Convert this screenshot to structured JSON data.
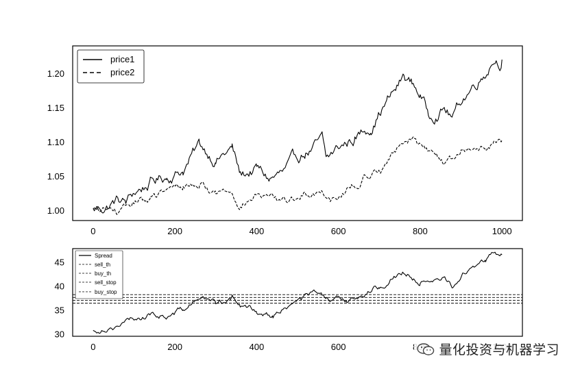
{
  "chart_data": [
    {
      "type": "line",
      "title": "",
      "xlabel": "",
      "ylabel": "",
      "xlim": [
        -50,
        1050
      ],
      "ylim": [
        0.985,
        1.24
      ],
      "xticks": [
        0,
        200,
        400,
        600,
        800,
        1000
      ],
      "yticks": [
        1.0,
        1.05,
        1.1,
        1.15,
        1.2
      ],
      "ytick_labels": [
        "1.00",
        "1.05",
        "1.10",
        "1.15",
        "1.20"
      ],
      "legend_position": "top-left",
      "grid": false,
      "series": [
        {
          "name": "price1",
          "style": "solid",
          "color": "#000000",
          "x": [
            0,
            30,
            60,
            80,
            100,
            140,
            180,
            220,
            260,
            300,
            340,
            360,
            400,
            430,
            470,
            520,
            540,
            560,
            570,
            600,
            640,
            680,
            700,
            720,
            740,
            760,
            780,
            800,
            820,
            860,
            880,
            900,
            940,
            960,
            980,
            1000
          ],
          "values": [
            1.0,
            1.005,
            1.015,
            1.01,
            1.025,
            1.04,
            1.05,
            1.06,
            1.095,
            1.075,
            1.09,
            1.05,
            1.06,
            1.045,
            1.055,
            1.085,
            1.09,
            1.1,
            1.07,
            1.09,
            1.105,
            1.125,
            1.145,
            1.16,
            1.175,
            1.195,
            1.185,
            1.17,
            1.14,
            1.15,
            1.135,
            1.16,
            1.19,
            1.205,
            1.225,
            1.22
          ]
        },
        {
          "name": "price2",
          "style": "dashed",
          "color": "#000000",
          "x": [
            0,
            40,
            70,
            100,
            140,
            180,
            220,
            260,
            300,
            340,
            360,
            400,
            440,
            470,
            520,
            560,
            580,
            620,
            660,
            700,
            740,
            760,
            780,
            800,
            840,
            860,
            900,
            940,
            960,
            980,
            1000
          ],
          "values": [
            1.0,
            1.0,
            0.997,
            1.01,
            1.017,
            1.025,
            1.035,
            1.04,
            1.025,
            1.03,
            1.01,
            1.022,
            1.015,
            1.01,
            1.025,
            1.03,
            1.02,
            1.03,
            1.045,
            1.06,
            1.085,
            1.105,
            1.108,
            1.095,
            1.08,
            1.07,
            1.08,
            1.09,
            1.095,
            1.1,
            1.102
          ]
        }
      ]
    },
    {
      "type": "line",
      "title": "",
      "xlabel": "",
      "ylabel": "",
      "xlim": [
        -50,
        1050
      ],
      "ylim": [
        29.5,
        47.8
      ],
      "xticks": [
        0,
        200,
        400,
        600,
        800,
        1000
      ],
      "yticks": [
        30,
        35,
        40,
        45
      ],
      "legend_position": "top-left",
      "grid": false,
      "series": [
        {
          "name": "Spread",
          "style": "solid",
          "color": "#000000",
          "x": [
            0,
            30,
            70,
            100,
            140,
            180,
            220,
            260,
            300,
            340,
            360,
            400,
            440,
            470,
            520,
            540,
            560,
            580,
            620,
            660,
            700,
            730,
            760,
            800,
            830,
            860,
            880,
            920,
            960,
            980,
            1000
          ],
          "values": [
            30.5,
            31.5,
            32.0,
            33.0,
            34.0,
            33.8,
            35.0,
            37.5,
            36.5,
            37.5,
            35.5,
            35.0,
            34.0,
            35.5,
            37.5,
            38.5,
            37.5,
            36.5,
            37.0,
            38.5,
            40.0,
            42.0,
            43.0,
            41.0,
            40.0,
            41.5,
            40.0,
            43.5,
            45.5,
            47.0,
            46.5
          ]
        },
        {
          "name": "sell_th",
          "style": "dashed",
          "constant": 37.6
        },
        {
          "name": "buy_th",
          "style": "dashed",
          "constant": 37.0
        },
        {
          "name": "sell_stop",
          "style": "dashed",
          "constant": 38.2
        },
        {
          "name": "buy_stop",
          "style": "dashed",
          "constant": 36.4
        }
      ]
    }
  ],
  "watermark": {
    "icon": "wechat-icon",
    "text": "量化投资与机器学习"
  }
}
